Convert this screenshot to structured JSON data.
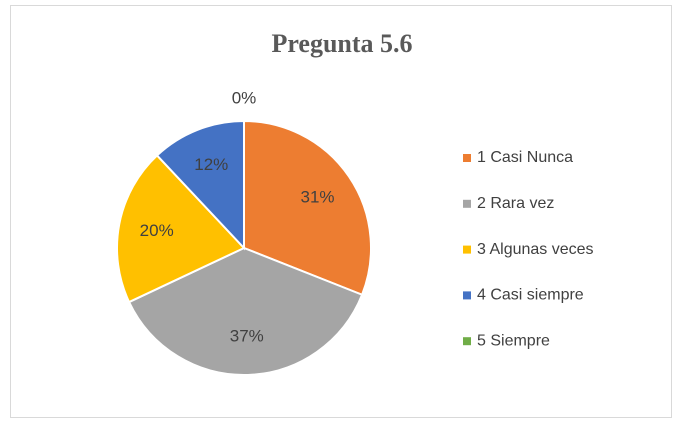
{
  "chart_data": {
    "type": "pie",
    "title": "Pregunta 5.6",
    "categories": [
      "1 Casi Nunca",
      "2 Rara vez",
      "3 Algunas veces",
      "4 Casi siempre",
      "5 Siempre"
    ],
    "values": [
      31,
      37,
      20,
      12,
      0
    ],
    "value_labels": [
      "31%",
      "37%",
      "20%",
      "12%",
      "0%"
    ],
    "colors": [
      "#ed7d31",
      "#a5a5a5",
      "#ffc000",
      "#4472c4",
      "#70ad47"
    ],
    "legend": "right"
  }
}
